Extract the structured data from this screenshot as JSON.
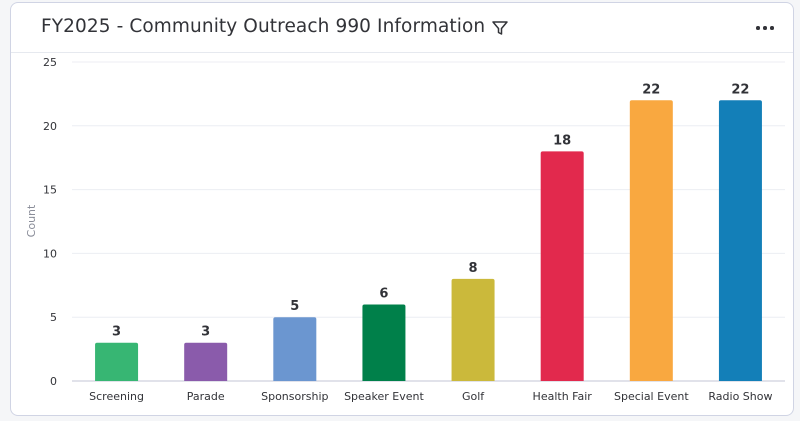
{
  "widget": {
    "title": "FY2025 - Community Outreach 990 Information",
    "filter_icon": "filter-icon",
    "more_icon": "more-horizontal-icon"
  },
  "chart_data": {
    "type": "bar",
    "categories": [
      "Screening",
      "Parade",
      "Sponsorship",
      "Speaker Event",
      "Golf",
      "Health Fair",
      "Special Event",
      "Radio Show"
    ],
    "values": [
      3,
      3,
      5,
      6,
      8,
      18,
      22,
      22
    ],
    "colors": [
      "#37b673",
      "#8a5bab",
      "#6b96d0",
      "#00804a",
      "#cbb93b",
      "#e2294d",
      "#f9a840",
      "#137fb8"
    ],
    "ylabel": "Count",
    "ylim": [
      0,
      25
    ],
    "yticks": [
      0,
      5,
      10,
      15,
      20,
      25
    ],
    "grid": true,
    "data_labels": true
  }
}
